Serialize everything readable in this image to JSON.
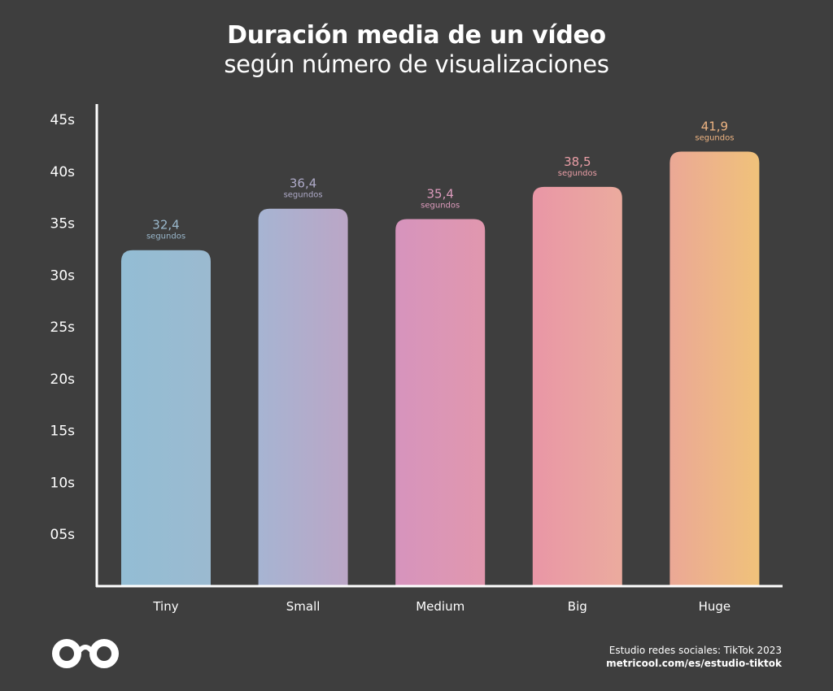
{
  "chart_data": {
    "type": "bar",
    "title": "Duración media de un vídeo",
    "subtitle": "según número de visualizaciones",
    "categories": [
      "Tiny",
      "Small",
      "Medium",
      "Big",
      "Huge"
    ],
    "values": [
      32.4,
      36.4,
      35.4,
      38.5,
      41.9
    ],
    "value_labels": [
      "32,4",
      "36,4",
      "35,4",
      "38,5",
      "41,9"
    ],
    "unit_label": "segundos",
    "yticks": [
      "05s",
      "10s",
      "15s",
      "20s",
      "25s",
      "30s",
      "35s",
      "40s",
      "45s"
    ],
    "ytick_values": [
      5,
      10,
      15,
      20,
      25,
      30,
      35,
      40,
      45
    ],
    "ylim": [
      0,
      45
    ],
    "grid": false,
    "colors": {
      "Tiny": [
        "#93bdd4",
        "#9bbad0"
      ],
      "Small": [
        "#a6b4d2",
        "#bba6c6"
      ],
      "Medium": [
        "#d694bd",
        "#e197ae"
      ],
      "Big": [
        "#e996a6",
        "#ebab9e"
      ],
      "Huge": [
        "#eba896",
        "#f0c27a"
      ]
    },
    "label_colors": [
      "#9ab8cc",
      "#aeaac8",
      "#dd9bbd",
      "#e99ea6",
      "#eeb482"
    ]
  },
  "source": {
    "line1": "Estudio redes sociales: TikTok 2023",
    "line2": "metricool.com/es/estudio-tiktok"
  },
  "logo": {
    "icon": "metricool-infinity-icon",
    "color": "#ffffff"
  }
}
